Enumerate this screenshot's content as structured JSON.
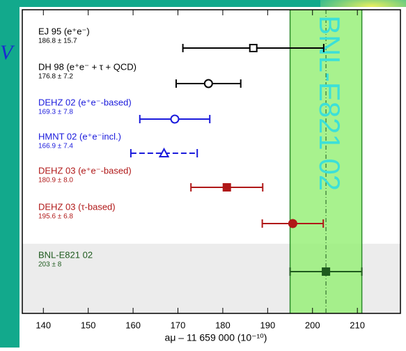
{
  "slide_text": "V",
  "chart_data": {
    "type": "errorbar",
    "categories": [
      "EJ 95 (e⁺e⁻)",
      "DH 98 (e⁺e⁻ + τ + QCD)",
      "DEHZ 02 (e⁺e⁻-based)",
      "HMNT 02 (e⁺e⁻incl.)",
      "DEHZ 03 (e⁺e⁻-based)",
      "DEHZ 03 (τ-based)",
      "BNL-E821 02"
    ],
    "values": [
      186.8,
      176.8,
      169.3,
      166.9,
      180.9,
      195.6,
      203
    ],
    "errors": [
      15.7,
      7.2,
      7.8,
      7.4,
      8.0,
      6.8,
      8
    ],
    "value_labels": [
      "186.8 ± 15.7",
      "176.8 ± 7.2",
      "169.3 ± 7.8",
      "166.9 ± 7.4",
      "180.9 ± 8.0",
      "195.6 ± 6.8",
      "203 ± 8"
    ],
    "colors": [
      "#000000",
      "#000000",
      "#1a1adc",
      "#1a1adc",
      "#b01818",
      "#b01818",
      "#1e5a1e"
    ],
    "markers": [
      "open-square",
      "open-circle",
      "open-circle",
      "open-triangle",
      "square",
      "circle",
      "square"
    ],
    "band_label": "BNL-E821 02",
    "xlabel": "aμ – 11 659 000   (10⁻¹⁰)",
    "xlim": [
      135.3,
      219.6
    ],
    "xticks": [
      140,
      150,
      160,
      170,
      180,
      190,
      200,
      210
    ]
  }
}
